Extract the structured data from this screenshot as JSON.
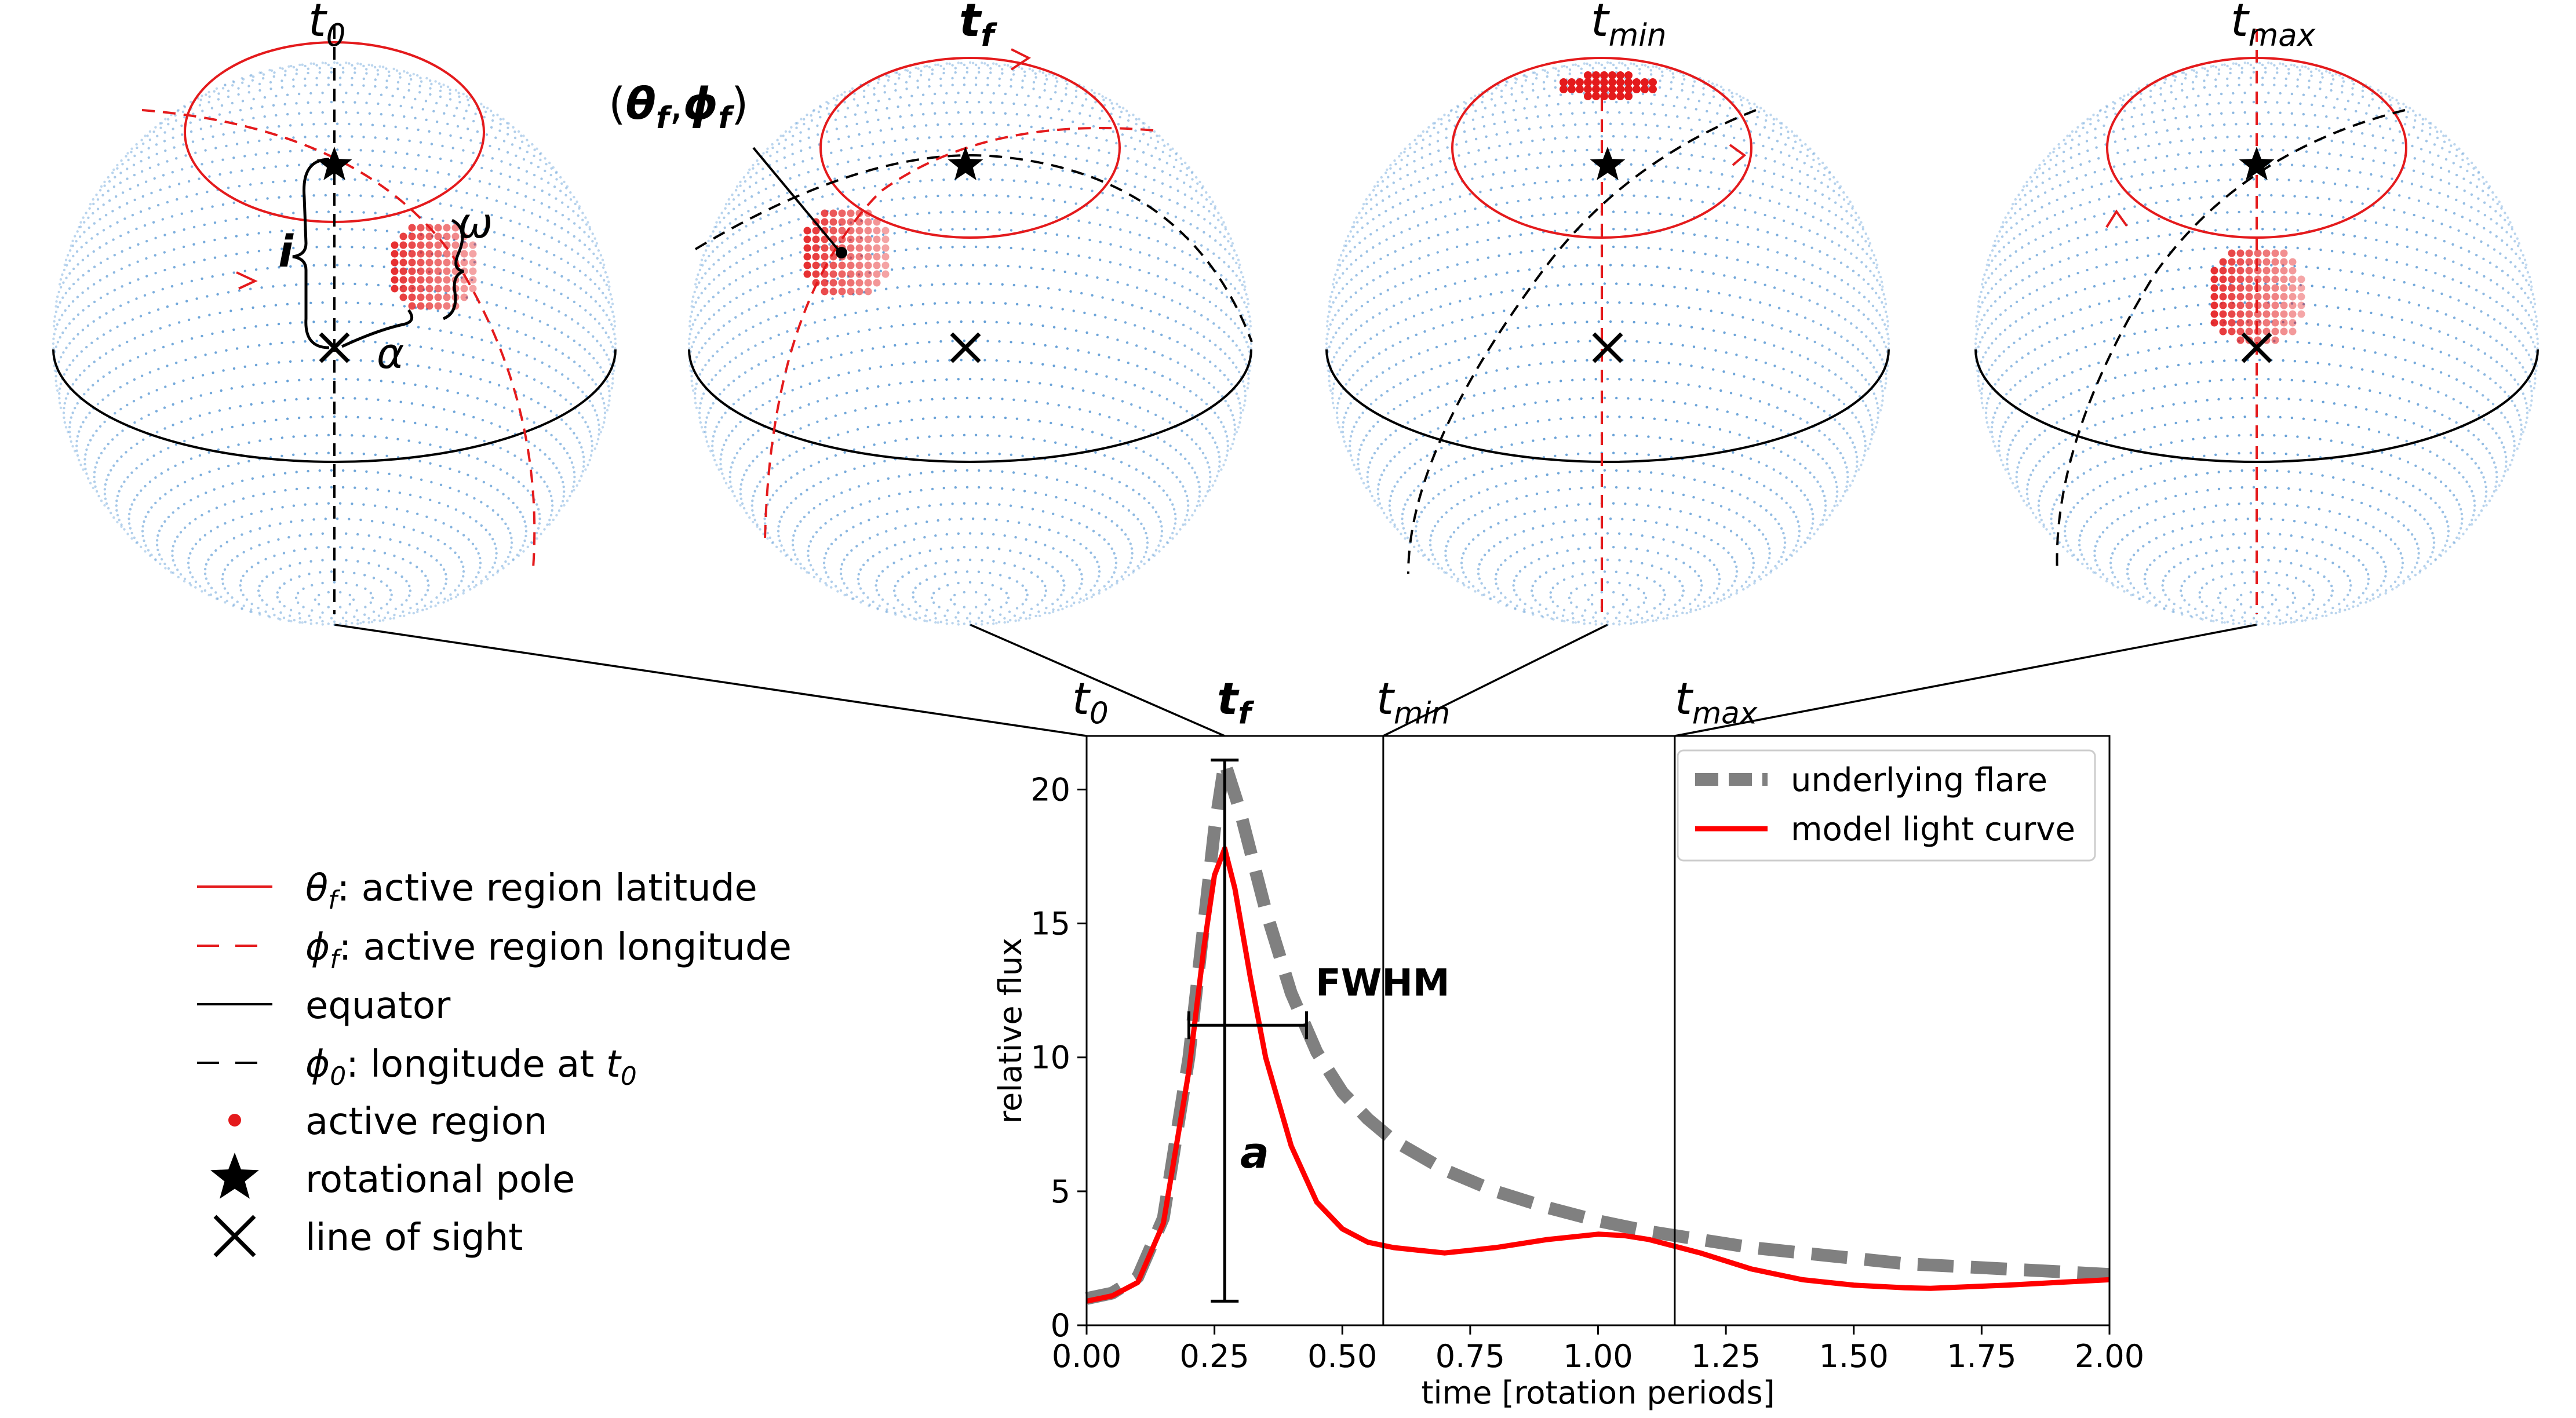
{
  "top_labels": [
    {
      "base": "t",
      "sub": "0",
      "bold": false
    },
    {
      "base": "t",
      "sub": "f",
      "bold": true
    },
    {
      "base": "t",
      "sub": "min",
      "bold": false
    },
    {
      "base": "t",
      "sub": "max",
      "bold": false
    }
  ],
  "annotations": {
    "theta_phi_open": "(",
    "theta": "θ",
    "f": "f",
    "comma": ",",
    "phi": "ϕ",
    "theta_phi_close": ")",
    "inclination": "i",
    "omega": "ω",
    "alpha": "α",
    "fwhm": "FWHM",
    "amplitude": "a"
  },
  "legend_left": [
    {
      "id": "latitude",
      "sym": "θ",
      "sub": "f",
      "text": ": active region latitude"
    },
    {
      "id": "longitude",
      "sym": "ϕ",
      "sub": "f",
      "text": ": active region longitude"
    },
    {
      "id": "equator",
      "text": "equator"
    },
    {
      "id": "longitude-t0",
      "sym": "ϕ",
      "sub": "0",
      "text": ": longitude at ",
      "tail_sym": "t",
      "tail_sub": "0"
    },
    {
      "id": "active-region",
      "text": "active region"
    },
    {
      "id": "rotational-pole",
      "text": "rotational pole"
    },
    {
      "id": "line-of-sight",
      "text": "line of sight"
    }
  ],
  "chart_data": {
    "type": "line",
    "xlabel": "time [rotation periods]",
    "ylabel": "relative flux",
    "xlim": [
      0,
      2
    ],
    "ylim": [
      0,
      22
    ],
    "xticks": [
      "0.00",
      "0.25",
      "0.50",
      "0.75",
      "1.00",
      "1.25",
      "1.50",
      "1.75",
      "2.00"
    ],
    "yticks": [
      "0",
      "5",
      "10",
      "15",
      "20"
    ],
    "legend": {
      "placement": "top-right",
      "entries": [
        "underlying flare",
        "model light curve"
      ]
    },
    "vlines": [
      0.0,
      0.27,
      0.58,
      1.15
    ],
    "vline_labels": [
      {
        "base": "t",
        "sub": "0",
        "bold": false
      },
      {
        "base": "t",
        "sub": "f",
        "bold": true
      },
      {
        "base": "t",
        "sub": "min",
        "bold": false
      },
      {
        "base": "t",
        "sub": "max",
        "bold": false
      }
    ],
    "series": [
      {
        "name": "underlying flare",
        "color": "#808080",
        "style": "dashed",
        "x": [
          0.0,
          0.05,
          0.1,
          0.15,
          0.2,
          0.25,
          0.27,
          0.3,
          0.35,
          0.4,
          0.45,
          0.5,
          0.55,
          0.6,
          0.7,
          0.8,
          0.9,
          1.0,
          1.1,
          1.2,
          1.3,
          1.4,
          1.5,
          1.6,
          1.7,
          1.8,
          1.9,
          2.0
        ],
        "y": [
          1.0,
          1.2,
          1.8,
          4.0,
          10.0,
          18.5,
          21.0,
          19.2,
          15.5,
          12.4,
          10.2,
          8.7,
          7.7,
          6.9,
          5.8,
          5.0,
          4.4,
          3.9,
          3.5,
          3.2,
          2.9,
          2.7,
          2.5,
          2.3,
          2.2,
          2.1,
          2.0,
          1.9
        ]
      },
      {
        "name": "model light curve",
        "color": "#ff0000",
        "style": "solid",
        "x": [
          0.0,
          0.05,
          0.1,
          0.15,
          0.2,
          0.23,
          0.25,
          0.27,
          0.29,
          0.32,
          0.35,
          0.4,
          0.45,
          0.5,
          0.55,
          0.6,
          0.65,
          0.7,
          0.8,
          0.9,
          1.0,
          1.05,
          1.1,
          1.2,
          1.3,
          1.4,
          1.5,
          1.6,
          1.65,
          1.7,
          1.8,
          1.9,
          2.0
        ],
        "y": [
          0.9,
          1.1,
          1.6,
          3.8,
          9.5,
          14.2,
          16.8,
          17.8,
          16.3,
          13.0,
          10.0,
          6.7,
          4.6,
          3.6,
          3.1,
          2.9,
          2.8,
          2.7,
          2.9,
          3.2,
          3.4,
          3.35,
          3.2,
          2.7,
          2.1,
          1.7,
          1.5,
          1.4,
          1.38,
          1.42,
          1.5,
          1.6,
          1.7
        ]
      }
    ],
    "fwhm_bar": {
      "x0": 0.2,
      "x1": 0.43,
      "y": 11.2
    },
    "amplitude_bar": {
      "x": 0.27,
      "y0": 0.9,
      "y1": 21.1
    }
  },
  "colors": {
    "sphere_dots": "#4a8fd0",
    "red": "#e41a1c",
    "black": "#000000",
    "gray": "#808080"
  }
}
